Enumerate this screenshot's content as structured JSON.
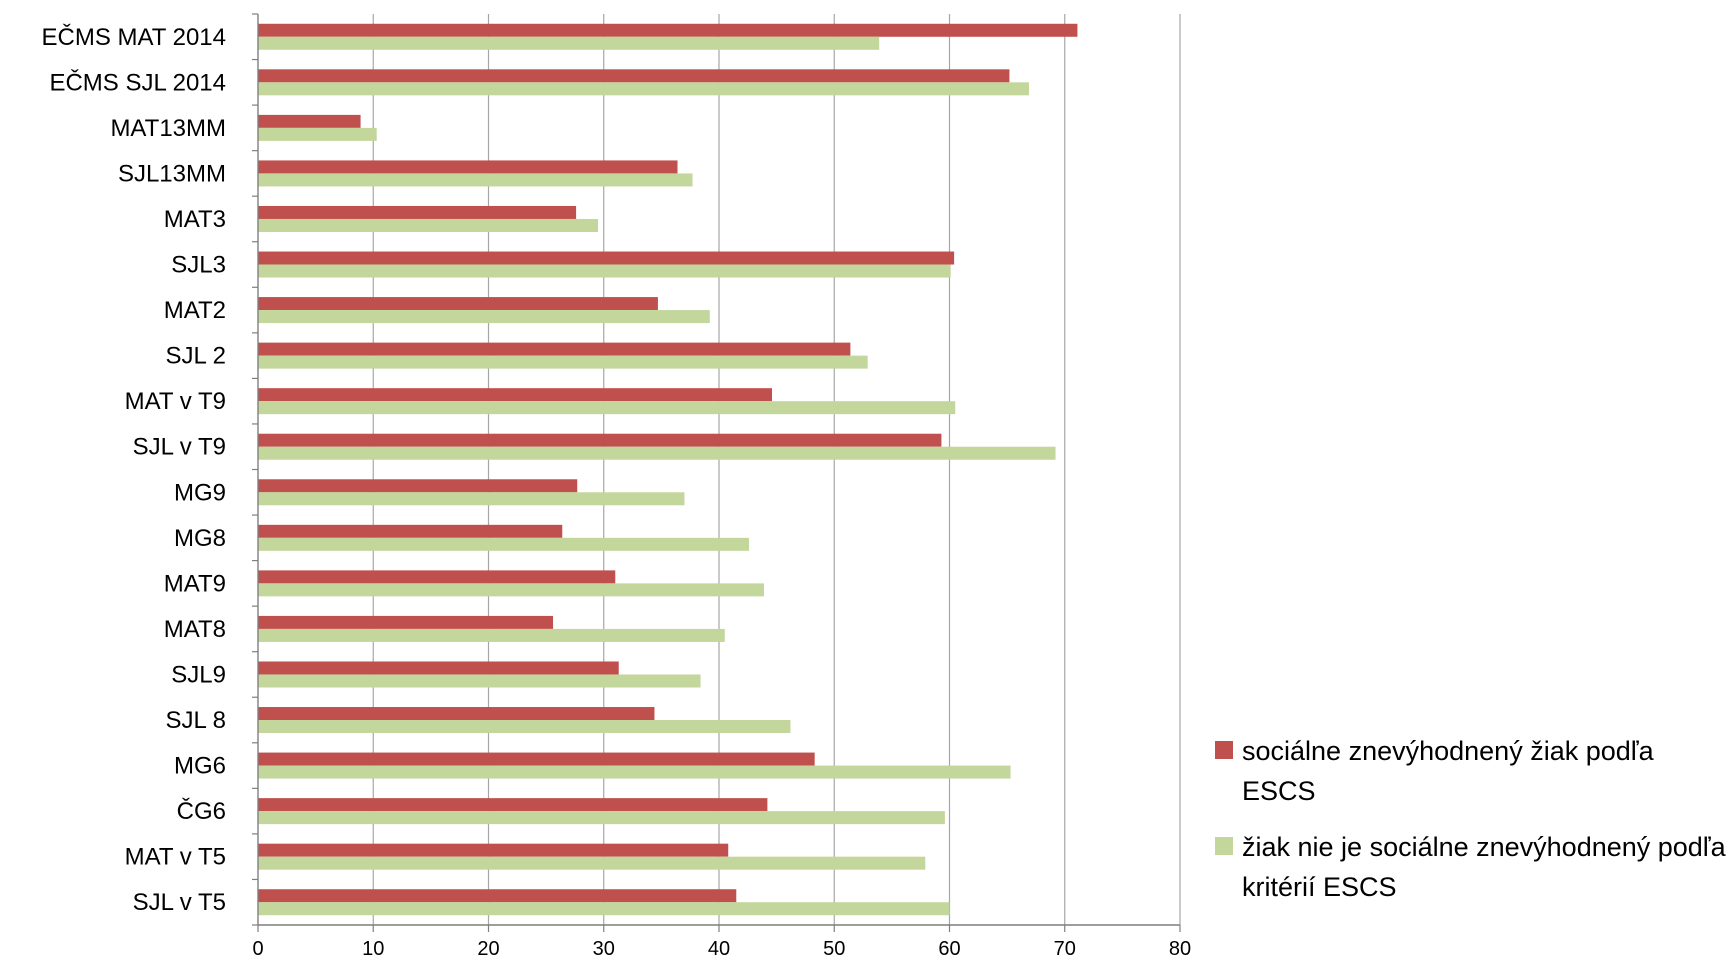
{
  "chart_data": {
    "type": "bar",
    "orientation": "horizontal",
    "categories": [
      "EČMS MAT 2014",
      "EČMS SJL 2014",
      "MAT13MM",
      "SJL13MM",
      "MAT3",
      "SJL3",
      "MAT2",
      "SJL 2",
      "MAT v T9",
      "SJL v T9",
      "MG9",
      "MG8",
      "MAT9",
      "MAT8",
      "SJL9",
      "SJL 8",
      "MG6",
      "ČG6",
      "MAT v T5",
      "SJL v T5"
    ],
    "series": [
      {
        "name": "sociálne znevýhodnený žiak podľa ESCS",
        "color": "#c0504d",
        "values": [
          71.1,
          65.2,
          8.9,
          36.4,
          27.6,
          60.4,
          34.7,
          51.4,
          44.6,
          59.3,
          27.7,
          26.4,
          31.0,
          25.6,
          31.3,
          34.4,
          48.3,
          44.2,
          40.8,
          41.5
        ]
      },
      {
        "name": "žiak nie je sociálne znevýhodnený podľa kritérií ESCS",
        "color": "#c3d69b",
        "values": [
          53.9,
          66.9,
          10.3,
          37.7,
          29.5,
          60.1,
          39.2,
          52.9,
          60.5,
          69.2,
          37.0,
          42.6,
          43.9,
          40.5,
          38.4,
          46.2,
          65.3,
          59.6,
          57.9,
          60.0
        ]
      }
    ],
    "xlim": [
      0,
      80
    ],
    "xticks": [
      0,
      10,
      20,
      30,
      40,
      50,
      60,
      70,
      80
    ],
    "grid": true,
    "legend_position": "right"
  },
  "legend": {
    "items": [
      {
        "text": "sociálne znevýhodnený žiak podľa ESCS",
        "color": "#c0504d"
      },
      {
        "text": "žiak nie je sociálne znevýhodnený podľa kritérií ESCS",
        "color": "#c3d69b"
      }
    ]
  }
}
